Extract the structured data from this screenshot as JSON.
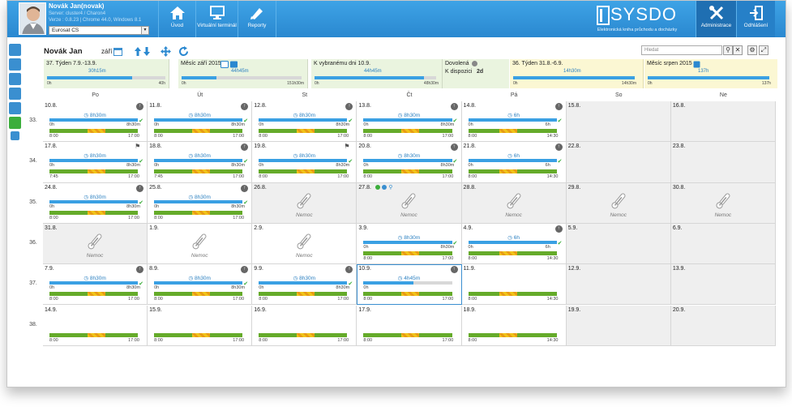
{
  "user": {
    "name": "Novák Jan(novak)",
    "server": "Server: cluster4 / Charon4",
    "version": "Verze : 0.8.23 | Chrome 44.0, Windows 8.1",
    "company": "Eurosat CS"
  },
  "nav": {
    "home": "Úvod",
    "terminal": "Virtuální terminál",
    "reports": "Reporty",
    "admin": "Administrace",
    "logout": "Odhlášení"
  },
  "logo": {
    "text": "SYSDO",
    "subtitle": "Elektronická kniha průchodu a docházky"
  },
  "header": {
    "person": "Novák Jan",
    "month": "září",
    "search_placeholder": "Hledat"
  },
  "summary": {
    "week": {
      "label": "37. Týden 7.9.-13.9.",
      "value": "30h15m",
      "start": "0h",
      "end": "40h",
      "fill": 0.72
    },
    "month": {
      "label": "Měsíc září 2015",
      "value": "44h45m",
      "start": "0h",
      "end": "151h30m",
      "fill": 0.29
    },
    "day": {
      "label": "K vybranému dni 10.9.",
      "value": "44h45m",
      "start": "0h",
      "end": "48h30m",
      "fill": 0.9
    },
    "vacation": {
      "label": "Dovolená",
      "available_label": "K dispozici",
      "available": "2d"
    },
    "prev_week": {
      "label": "36. Týden 31.8.-6.9.",
      "value": "14h30m",
      "start": "0h",
      "end": "14h30m",
      "fill": 1.0
    },
    "prev_month": {
      "label": "Měsíc srpen 2015",
      "value": "137h",
      "start": "0h",
      "end": "137h",
      "fill": 1.0
    }
  },
  "days": [
    "Po",
    "Út",
    "St",
    "Čt",
    "Pá",
    "So",
    "Ne"
  ],
  "weeks": [
    "33.",
    "34.",
    "35.",
    "36.",
    "37.",
    "38."
  ],
  "illness_label": "Nemoc",
  "cells": [
    [
      {
        "date": "10.8.",
        "hrs": "8h30m",
        "s": "0h",
        "e": "8h30m",
        "a": "8:00",
        "b": "17:00",
        "fill": 1,
        "icon": "up"
      },
      {
        "date": "11.8.",
        "hrs": "8h30m",
        "s": "0h",
        "e": "8h30m",
        "a": "8:00",
        "b": "17:00",
        "fill": 1,
        "icon": "up"
      },
      {
        "date": "12.8.",
        "hrs": "8h30m",
        "s": "0h",
        "e": "8h30m",
        "a": "8:00",
        "b": "17:00",
        "fill": 1,
        "icon": "up"
      },
      {
        "date": "13.8.",
        "hrs": "8h30m",
        "s": "0h",
        "e": "8h30m",
        "a": "8:00",
        "b": "17:00",
        "fill": 1,
        "icon": "up"
      },
      {
        "date": "14.8.",
        "hrs": "6h",
        "s": "0h",
        "e": "6h",
        "a": "8:00",
        "b": "14:30",
        "fill": 1,
        "icon": "up"
      },
      {
        "date": "15.8.",
        "grey": true
      },
      {
        "date": "16.8.",
        "grey": true
      }
    ],
    [
      {
        "date": "17.8.",
        "hrs": "8h30m",
        "s": "0h",
        "e": "8h30m",
        "a": "7:45",
        "b": "17:00",
        "fill": 1,
        "icon": "flag"
      },
      {
        "date": "18.8.",
        "hrs": "8h30m",
        "s": "0h",
        "e": "8h30m",
        "a": "7:45",
        "b": "17:00",
        "fill": 1,
        "icon": "up"
      },
      {
        "date": "19.8.",
        "hrs": "8h30m",
        "s": "0h",
        "e": "8h30m",
        "a": "8:00",
        "b": "17:00",
        "fill": 1,
        "icon": "flag"
      },
      {
        "date": "20.8.",
        "hrs": "8h30m",
        "s": "0h",
        "e": "8h30m",
        "a": "8:00",
        "b": "17:00",
        "fill": 1,
        "icon": "up"
      },
      {
        "date": "21.8.",
        "hrs": "6h",
        "s": "0h",
        "e": "6h",
        "a": "8:00",
        "b": "14:30",
        "fill": 1,
        "icon": "up"
      },
      {
        "date": "22.8.",
        "grey": true
      },
      {
        "date": "23.8.",
        "grey": true
      }
    ],
    [
      {
        "date": "24.8.",
        "hrs": "8h30m",
        "s": "0h",
        "e": "8h30m",
        "a": "8:00",
        "b": "17:00",
        "fill": 1,
        "icon": "up"
      },
      {
        "date": "25.8.",
        "hrs": "8h30m",
        "s": "0h",
        "e": "8h30m",
        "a": "8:00",
        "b": "17:00",
        "fill": 1,
        "icon": "up"
      },
      {
        "date": "26.8.",
        "grey": true,
        "ill": true
      },
      {
        "date": "27.8.",
        "grey": true,
        "ill": true,
        "tools": true
      },
      {
        "date": "28.8.",
        "grey": true,
        "ill": true
      },
      {
        "date": "29.8.",
        "grey": true,
        "ill": true
      },
      {
        "date": "30.8.",
        "grey": true,
        "ill": true
      }
    ],
    [
      {
        "date": "31.8.",
        "grey": true,
        "ill": true
      },
      {
        "date": "1.9.",
        "ill": true
      },
      {
        "date": "2.9.",
        "ill": true
      },
      {
        "date": "3.9.",
        "hrs": "8h30m",
        "s": "0h",
        "e": "8h30m",
        "a": "8:00",
        "b": "17:00",
        "fill": 1,
        "icon": "none"
      },
      {
        "date": "4.9.",
        "hrs": "6h",
        "s": "0h",
        "e": "6h",
        "a": "8:00",
        "b": "14:30",
        "fill": 1,
        "icon": "up"
      },
      {
        "date": "5.9.",
        "grey": true
      },
      {
        "date": "6.9.",
        "grey": true
      }
    ],
    [
      {
        "date": "7.9.",
        "hrs": "8h30m",
        "s": "0h",
        "e": "8h30m",
        "a": "8:00",
        "b": "17:00",
        "fill": 1,
        "icon": "up"
      },
      {
        "date": "8.9.",
        "hrs": "8h30m",
        "s": "0h",
        "e": "8h30m",
        "a": "8:00",
        "b": "17:00",
        "fill": 1,
        "icon": "up"
      },
      {
        "date": "9.9.",
        "hrs": "8h30m",
        "s": "0h",
        "e": "8h30m",
        "a": "8:00",
        "b": "17:00",
        "fill": 1,
        "icon": "up"
      },
      {
        "date": "10.9.",
        "hrs": "4h45m",
        "s": "0h",
        "e": "",
        "a": "8:00",
        "b": "17:00",
        "fill": 0.56,
        "icon": "up",
        "sel": true,
        "nocheck": true
      },
      {
        "date": "11.9.",
        "sched": true,
        "a": "8:00",
        "b": "14:30"
      },
      {
        "date": "12.9.",
        "grey": true
      },
      {
        "date": "13.9.",
        "grey": true
      }
    ],
    [
      {
        "date": "14.9.",
        "sched": true,
        "a": "8:00",
        "b": "17:00"
      },
      {
        "date": "15.9.",
        "sched": true,
        "a": "8:00",
        "b": "17:00"
      },
      {
        "date": "16.9.",
        "sched": true,
        "a": "8:00",
        "b": "17:00"
      },
      {
        "date": "17.9.",
        "sched": true,
        "a": "8:00",
        "b": "17:00"
      },
      {
        "date": "18.9.",
        "sched": true,
        "a": "8:00",
        "b": "14:30"
      },
      {
        "date": "19.9.",
        "grey": true
      },
      {
        "date": "20.9.",
        "grey": true
      }
    ]
  ]
}
